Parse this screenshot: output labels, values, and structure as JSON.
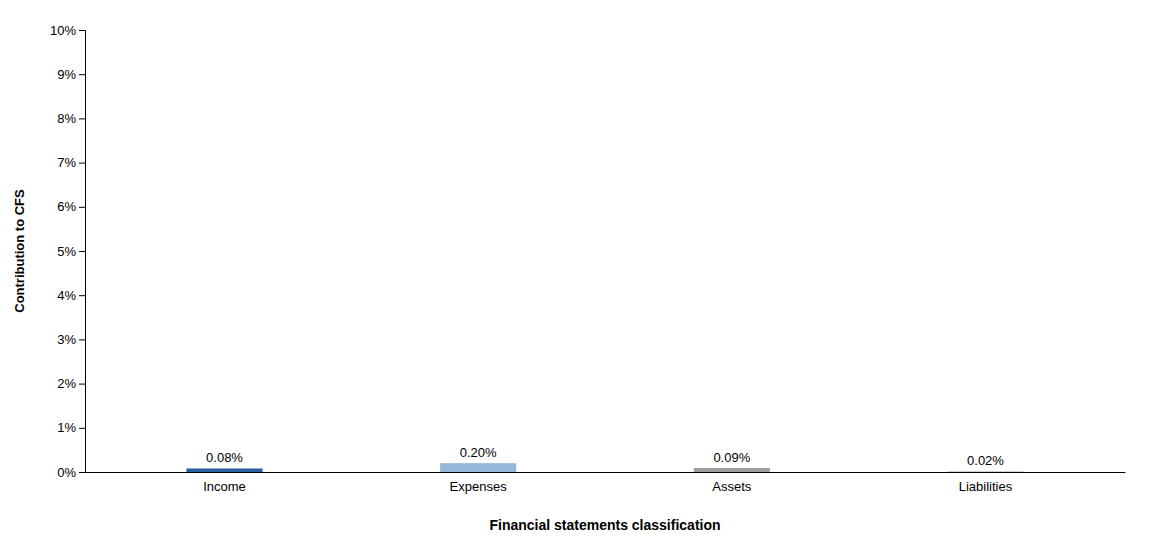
{
  "chart_data": {
    "type": "bar",
    "categories": [
      "Income",
      "Expenses",
      "Assets",
      "Liabilities"
    ],
    "values": [
      0.0008,
      0.002,
      0.0009,
      0.0002
    ],
    "value_labels": [
      "0.08%",
      "0.20%",
      "0.09%",
      "0.02%"
    ],
    "colors": [
      "#2E5FA3",
      "#94B8D9",
      "#9E9E9E",
      "#CACACA"
    ],
    "xlabel": "Financial statements classification",
    "ylabel": "Contribution to CFS",
    "ylim": [
      0,
      0.1
    ],
    "yticks": [
      {
        "value": 0.0,
        "label": "0%"
      },
      {
        "value": 0.01,
        "label": "1%"
      },
      {
        "value": 0.02,
        "label": "2%"
      },
      {
        "value": 0.03,
        "label": "3%"
      },
      {
        "value": 0.04,
        "label": "4%"
      },
      {
        "value": 0.05,
        "label": "5%"
      },
      {
        "value": 0.06,
        "label": "6%"
      },
      {
        "value": 0.07,
        "label": "7%"
      },
      {
        "value": 0.08,
        "label": "8%"
      },
      {
        "value": 0.09,
        "label": "9%"
      },
      {
        "value": 0.1,
        "label": "10%"
      }
    ],
    "grid": false,
    "data_labels": true
  }
}
